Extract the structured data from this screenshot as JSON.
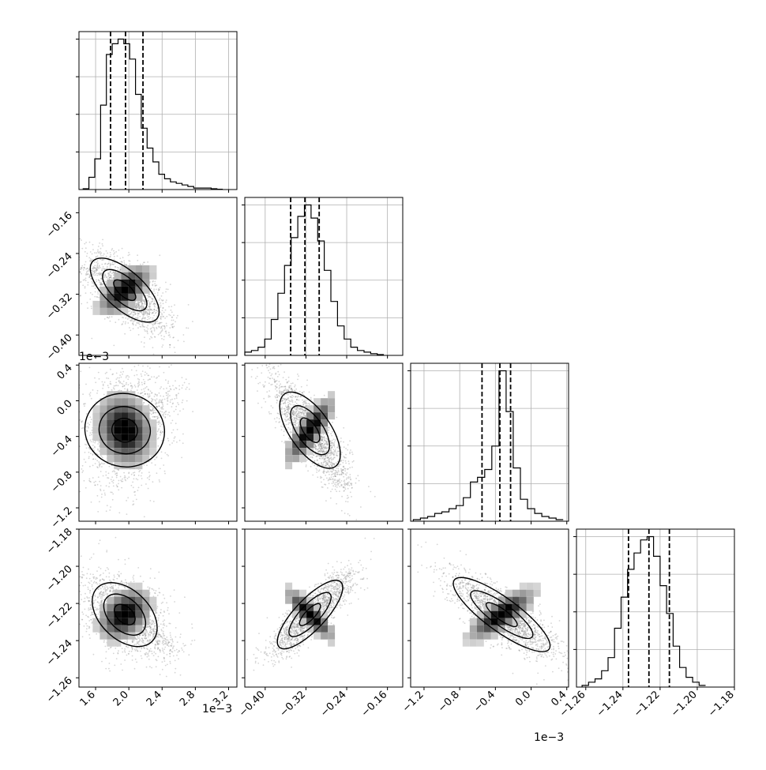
{
  "colors": {
    "axis": "#000000",
    "grid": "#b0b0b0",
    "density_dark": "#000000",
    "density_light": "#f5f5f5",
    "scatter": "#888888"
  },
  "chart_data": {
    "type": "corner",
    "parameters": [
      {
        "ticks": [
          1.6,
          2.0,
          2.4,
          2.8,
          3.2
        ],
        "tick_labels": [
          "1.6",
          "2.0",
          "2.4",
          "2.8",
          "3.2"
        ],
        "range": [
          1.4,
          3.3
        ],
        "offset_label": "1e−3"
      },
      {
        "ticks": [
          -0.4,
          -0.32,
          -0.24,
          -0.16
        ],
        "tick_labels": [
          "−0.40",
          "−0.32",
          "−0.24",
          "−0.16"
        ],
        "range": [
          -0.44,
          -0.13
        ],
        "offset_label": "1e−3"
      },
      {
        "ticks": [
          -1.2,
          -0.8,
          -0.4,
          0.0,
          0.4
        ],
        "tick_labels": [
          "−1.2",
          "−0.8",
          "−0.4",
          "0.0",
          "0.4"
        ],
        "range": [
          -1.35,
          0.42
        ],
        "offset_label": "1e−3"
      },
      {
        "ticks": [
          -1.26,
          -1.24,
          -1.22,
          -1.2,
          -1.18
        ],
        "tick_labels": [
          "−1.26",
          "−1.24",
          "−1.22",
          "−1.20",
          "−1.18"
        ],
        "range": [
          -1.265,
          -1.18
        ],
        "offset_label": ""
      }
    ],
    "grid": true,
    "marginals": [
      {
        "quantiles": [
          1.78,
          1.96,
          2.17
        ],
        "bins": [
          1.45,
          1.52,
          1.59,
          1.66,
          1.73,
          1.8,
          1.87,
          1.94,
          2.01,
          2.08,
          2.15,
          2.22,
          2.29,
          2.36,
          2.43,
          2.5,
          2.57,
          2.64,
          2.71,
          2.78,
          2.85,
          2.92,
          2.99,
          3.06,
          3.13
        ],
        "counts": [
          0.5,
          8,
          20,
          55,
          88,
          95,
          98,
          95,
          85,
          62,
          40,
          27,
          18,
          10,
          7,
          5,
          4,
          3,
          2,
          1,
          1,
          1,
          0.5,
          0.2
        ]
      },
      {
        "quantiles": [
          -0.35,
          -0.322,
          -0.294
        ],
        "bins": [
          -0.44,
          -0.427,
          -0.414,
          -0.401,
          -0.388,
          -0.375,
          -0.362,
          -0.349,
          -0.336,
          -0.323,
          -0.31,
          -0.297,
          -0.284,
          -0.271,
          -0.258,
          -0.245,
          -0.232,
          -0.219,
          -0.206,
          -0.193,
          -0.18,
          -0.167
        ],
        "counts": [
          2,
          3,
          5,
          10,
          22,
          38,
          55,
          72,
          85,
          92,
          84,
          70,
          52,
          33,
          18,
          10,
          5,
          3,
          2,
          1,
          0.5
        ]
      },
      {
        "quantiles": [
          -0.55,
          -0.35,
          -0.23
        ],
        "bins": [
          -1.32,
          -1.24,
          -1.16,
          -1.08,
          -1.0,
          -0.92,
          -0.84,
          -0.76,
          -0.68,
          -0.6,
          -0.52,
          -0.44,
          -0.36,
          -0.28,
          -0.2,
          -0.12,
          -0.04,
          0.04,
          0.12,
          0.2,
          0.28,
          0.36
        ],
        "counts": [
          1,
          2,
          3,
          5,
          6,
          8,
          10,
          15,
          25,
          28,
          33,
          48,
          96,
          70,
          34,
          14,
          8,
          5,
          3,
          2,
          1
        ]
      },
      {
        "quantiles": [
          -1.237,
          -1.226,
          -1.215
        ],
        "bins": [
          -1.262,
          -1.2585,
          -1.255,
          -1.2515,
          -1.248,
          -1.2445,
          -1.241,
          -1.2375,
          -1.234,
          -1.2305,
          -1.227,
          -1.2235,
          -1.22,
          -1.2165,
          -1.213,
          -1.2095,
          -1.206,
          -1.2025,
          -1.199,
          -1.1955
        ],
        "counts": [
          1,
          3,
          5,
          10,
          18,
          36,
          55,
          72,
          82,
          90,
          92,
          80,
          62,
          45,
          25,
          12,
          6,
          3,
          1
        ]
      }
    ],
    "pairs": [
      {
        "row": 1,
        "col": 0,
        "mean": [
          1.95,
          -0.312
        ],
        "sd": [
          0.17,
          0.026
        ],
        "rho": -0.6,
        "tail": [
          2.5,
          -0.41
        ]
      },
      {
        "row": 2,
        "col": 0,
        "mean": [
          1.95,
          -0.33
        ],
        "sd": [
          0.18,
          0.22
        ],
        "rho": 0.15,
        "tail": [
          2.6,
          0.1
        ]
      },
      {
        "row": 2,
        "col": 1,
        "mean": [
          -0.312,
          -0.33
        ],
        "sd": [
          0.026,
          0.2
        ],
        "rho": -0.82,
        "tail": [
          -0.25,
          -1.0
        ]
      },
      {
        "row": 3,
        "col": 0,
        "mean": [
          1.95,
          -1.226
        ],
        "sd": [
          0.17,
          0.0075
        ],
        "rho": -0.35,
        "tail": [
          2.6,
          -1.247
        ]
      },
      {
        "row": 3,
        "col": 1,
        "mean": [
          -0.312,
          -1.226
        ],
        "sd": [
          0.026,
          0.0075
        ],
        "rho": 0.85,
        "tail": [
          -0.22,
          -1.205
        ]
      },
      {
        "row": 3,
        "col": 2,
        "mean": [
          -0.33,
          -1.226
        ],
        "sd": [
          0.2,
          0.0075
        ],
        "rho": -0.78,
        "tail": [
          0.2,
          -1.245
        ]
      }
    ]
  }
}
